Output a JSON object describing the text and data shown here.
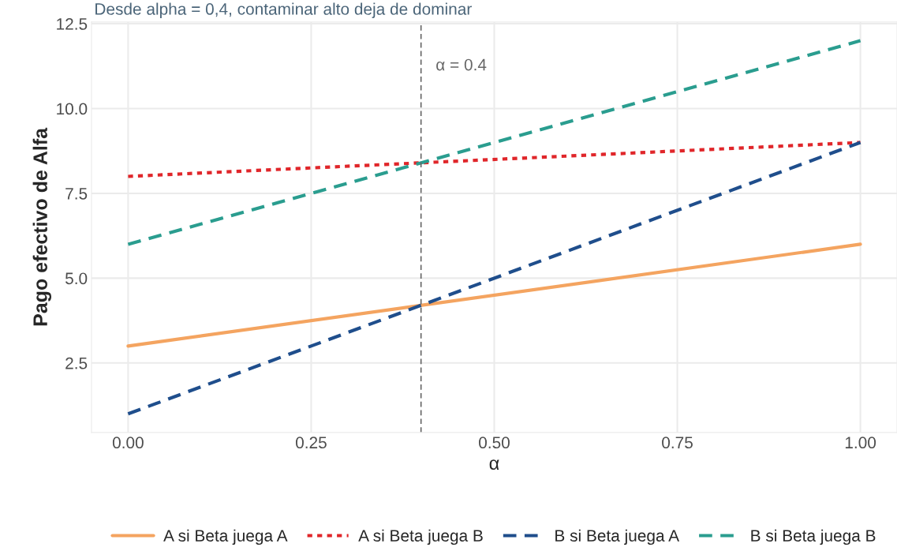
{
  "chart_data": {
    "type": "line",
    "subtitle": "Desde alpha = 0,4, contaminar alto deja de dominar",
    "xlabel": "α",
    "ylabel": "Pago efectivo de Alfa",
    "x": [
      0,
      1
    ],
    "series": [
      {
        "name": "A si Beta juega A",
        "color": "#f4a460",
        "values": [
          3,
          6
        ],
        "line_style": "solid"
      },
      {
        "name": "A si Beta juega B",
        "color": "#e0262a",
        "values": [
          8,
          9
        ],
        "line_style": "dotted"
      },
      {
        "name": "B si Beta juega A",
        "color": "#1f4e8c",
        "values": [
          1,
          9
        ],
        "line_style": "dashed"
      },
      {
        "name": "B si Beta juega B",
        "color": "#2a9d8f",
        "values": [
          6,
          12
        ],
        "line_style": "dashed"
      }
    ],
    "xlim": [
      -0.05,
      1.05
    ],
    "ylim": [
      0.45,
      12.55
    ],
    "xticks": [
      {
        "value": 0,
        "label": "0.00"
      },
      {
        "value": 0.25,
        "label": "0.25"
      },
      {
        "value": 0.5,
        "label": "0.50"
      },
      {
        "value": 0.75,
        "label": "0.75"
      },
      {
        "value": 1,
        "label": "1.00"
      }
    ],
    "yticks": [
      2.5,
      {
        "value": 5,
        "label": "5.0"
      },
      7.5,
      {
        "value": 10,
        "label": "10.0"
      },
      12.5
    ],
    "ref_lines": [
      {
        "axis": "x",
        "value": 0.4,
        "label": "α = 0.4",
        "color": "#666666",
        "line_style": "dashed"
      }
    ],
    "grid": true,
    "legend": "bottom"
  }
}
